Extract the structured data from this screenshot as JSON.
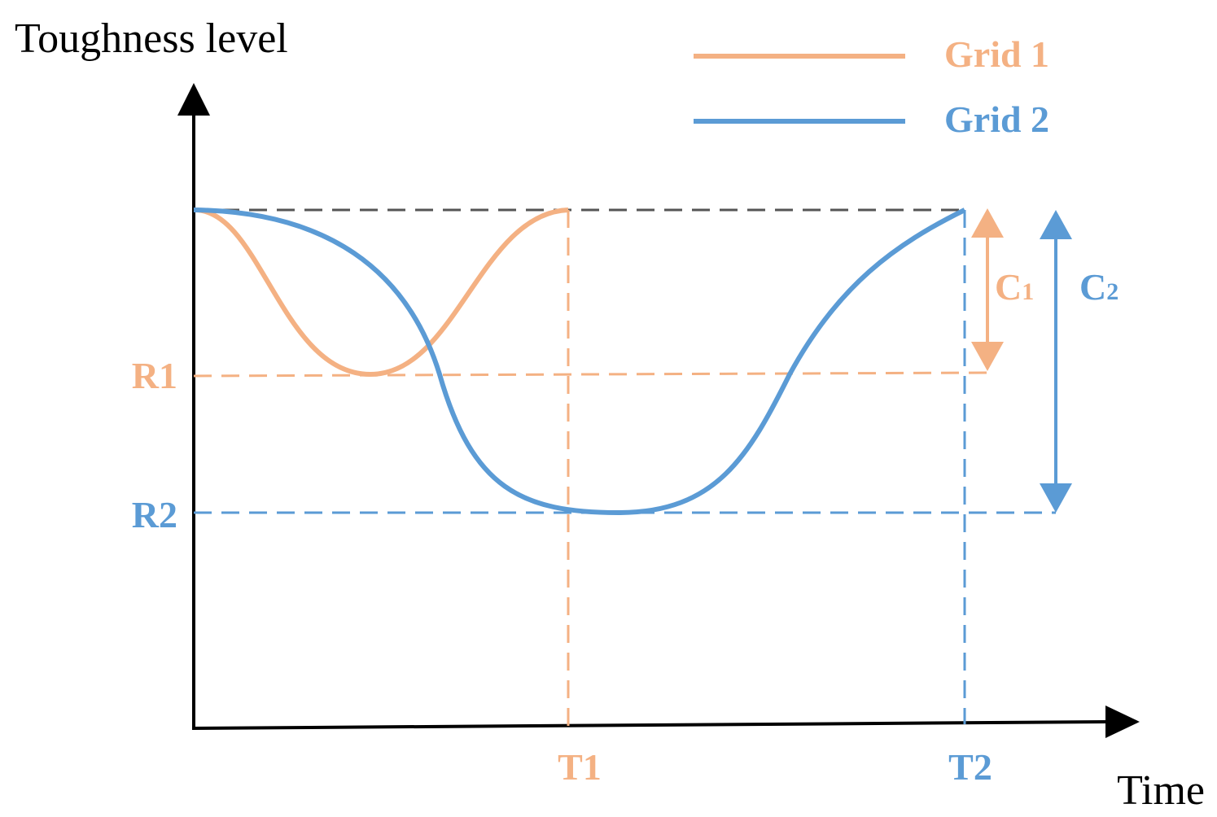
{
  "axes": {
    "y_label": "Toughness level",
    "x_label": "Time"
  },
  "legend": [
    {
      "label": "Grid 1"
    },
    {
      "label": "Grid 2"
    }
  ],
  "levels": {
    "r1": "R1",
    "r2": "R2"
  },
  "times": {
    "t1": "T1",
    "t2": "T2"
  },
  "recovery": {
    "c1": {
      "text": "C",
      "subscript": "1"
    },
    "c2": {
      "text": "C",
      "subscript": "2"
    }
  }
}
